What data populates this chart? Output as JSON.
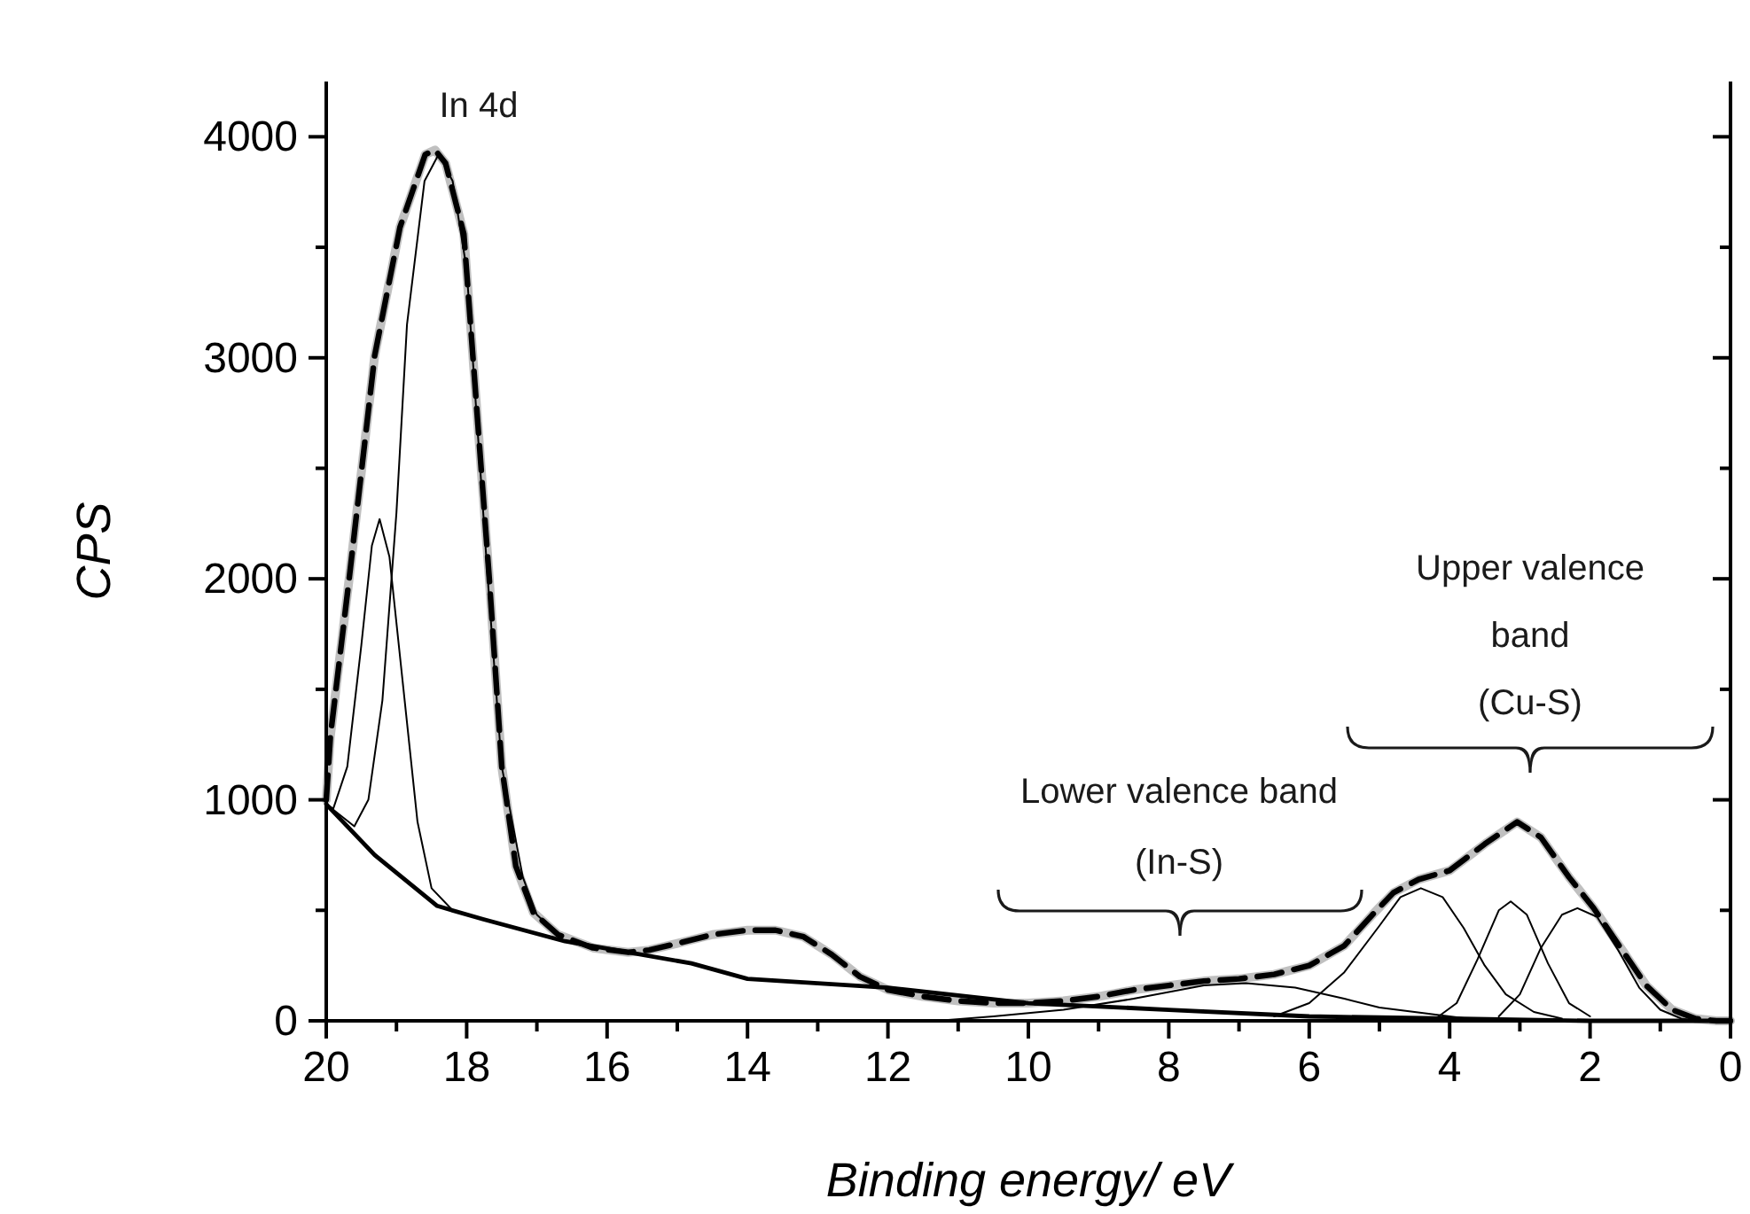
{
  "chart_data": {
    "type": "line",
    "xlabel": "Binding energy/ eV",
    "ylabel": "CPS",
    "xlim": [
      20,
      0
    ],
    "ylim": [
      0,
      4250
    ],
    "xticks": [
      20,
      {
        "value": 19,
        "label": null
      },
      18,
      {
        "value": 17,
        "label": null
      },
      16,
      {
        "value": 15,
        "label": null
      },
      14,
      {
        "value": 13,
        "label": null
      },
      12,
      {
        "value": 11,
        "label": null
      },
      10,
      {
        "value": 9,
        "label": null
      },
      8,
      {
        "value": 7,
        "label": null
      },
      6,
      {
        "value": 5,
        "label": null
      },
      4,
      {
        "value": 3,
        "label": null
      },
      2,
      {
        "value": 1,
        "label": null
      },
      0
    ],
    "yticks": [
      0,
      {
        "value": 500,
        "label": null
      },
      1000,
      {
        "value": 1500,
        "label": null
      },
      2000,
      {
        "value": 2500,
        "label": null
      },
      3000,
      {
        "value": 3500,
        "label": null
      },
      4000
    ],
    "grid": false,
    "marker": "none",
    "series": [
      {
        "color": "#c0c0c0",
        "line_style": "solid",
        "x": [
          20,
          19.94,
          19.67,
          19.31,
          18.95,
          18.59,
          18.45,
          18.3,
          18.04,
          17.68,
          17.5,
          17.3,
          17.05,
          16.7,
          16.2,
          15.7,
          15.4,
          15,
          14.5,
          14,
          13.6,
          13.2,
          12.8,
          12.4,
          12,
          11.5,
          11,
          10.5,
          10,
          9.5,
          9,
          8.5,
          8,
          7.5,
          7,
          6.5,
          6,
          5.5,
          5.1,
          4.8,
          4.44,
          4,
          3.5,
          3.04,
          2.7,
          2.3,
          1.95,
          1.5,
          1.2,
          0.83,
          0.5,
          0.2,
          0
        ],
        "values": [
          1000,
          1290,
          2010,
          3010,
          3590,
          3920,
          3940,
          3880,
          3560,
          2010,
          1150,
          700,
          490,
          390,
          330,
          310,
          320,
          350,
          390,
          410,
          410,
          380,
          300,
          200,
          140,
          110,
          90,
          80,
          80,
          90,
          110,
          140,
          160,
          180,
          190,
          210,
          250,
          340,
          480,
          580,
          640,
          680,
          800,
          900,
          830,
          650,
          510,
          300,
          160,
          50,
          10,
          0,
          0
        ]
      },
      {
        "color": "#000000",
        "line_style": "dashed",
        "x": [
          20,
          19.94,
          19.67,
          19.31,
          18.95,
          18.59,
          18.45,
          18.3,
          18.04,
          17.68,
          17.5,
          17.3,
          17.05,
          16.7,
          16.2,
          15.7,
          15.4,
          15,
          14.5,
          14,
          13.6,
          13.2,
          12.8,
          12.4,
          12,
          11.5,
          11,
          10.5,
          10,
          9.5,
          9,
          8.5,
          8,
          7.5,
          7,
          6.5,
          6,
          5.5,
          5.1,
          4.8,
          4.44,
          4,
          3.5,
          3.04,
          2.7,
          2.3,
          1.95,
          1.5,
          1.2,
          0.83,
          0.5,
          0.2,
          0
        ],
        "values": [
          1000,
          1290,
          2010,
          3010,
          3590,
          3920,
          3940,
          3880,
          3560,
          2010,
          1150,
          700,
          490,
          390,
          330,
          310,
          320,
          350,
          390,
          410,
          410,
          380,
          300,
          200,
          140,
          110,
          90,
          80,
          80,
          90,
          110,
          140,
          160,
          180,
          190,
          210,
          250,
          340,
          480,
          580,
          640,
          680,
          800,
          900,
          830,
          650,
          510,
          300,
          160,
          50,
          10,
          0,
          0
        ]
      },
      {
        "color": "#000000",
        "line_style": "solid",
        "x": [
          20,
          19.31,
          18.42,
          17.77,
          16.6,
          14.8,
          14,
          12,
          10,
          8,
          6,
          4,
          2,
          0
        ],
        "values": [
          980,
          750,
          520,
          460,
          360,
          260,
          190,
          150,
          80,
          50,
          20,
          10,
          0,
          0
        ]
      },
      {
        "color": "#000000",
        "line_style": "solid",
        "x": [
          20,
          19.6,
          19.4,
          19.2,
          19.0,
          18.85,
          18.6,
          18.4,
          18.2,
          18.0,
          17.7,
          17.5,
          17.2,
          17.0,
          16.7
        ],
        "values": [
          980,
          880,
          1000,
          1450,
          2300,
          3150,
          3800,
          3920,
          3800,
          3400,
          2000,
          1150,
          650,
          480,
          390
        ]
      },
      {
        "color": "#000000",
        "line_style": "solid",
        "x": [
          20,
          19.9,
          19.7,
          19.5,
          19.35,
          19.24,
          19.1,
          18.9,
          18.7,
          18.5,
          18.2
        ],
        "values": [
          980,
          960,
          1150,
          1700,
          2150,
          2270,
          2100,
          1500,
          900,
          600,
          500
        ]
      },
      {
        "color": "#000000",
        "line_style": "solid",
        "x": [
          11.3,
          10.5,
          9.5,
          8.5,
          7.5,
          6.9,
          6.2,
          5.5,
          5,
          4.5,
          4,
          3.5
        ],
        "values": [
          0,
          20,
          50,
          100,
          160,
          170,
          150,
          100,
          60,
          40,
          20,
          0
        ]
      },
      {
        "color": "#000000",
        "line_style": "solid",
        "x": [
          6.5,
          6,
          5.5,
          5,
          4.7,
          4.41,
          4.1,
          3.8,
          3.5,
          3.2,
          2.8,
          2.4
        ],
        "values": [
          20,
          80,
          220,
          430,
          560,
          600,
          560,
          420,
          250,
          120,
          40,
          10
        ]
      },
      {
        "color": "#000000",
        "line_style": "solid",
        "x": [
          4.2,
          3.9,
          3.6,
          3.3,
          3.13,
          2.9,
          2.6,
          2.3,
          2.0
        ],
        "values": [
          10,
          80,
          280,
          500,
          540,
          480,
          260,
          80,
          20
        ]
      },
      {
        "color": "#000000",
        "line_style": "solid",
        "x": [
          3.3,
          3.0,
          2.7,
          2.4,
          2.18,
          1.9,
          1.6,
          1.3,
          1.0,
          0.7,
          0.5
        ],
        "values": [
          20,
          120,
          330,
          480,
          510,
          470,
          320,
          150,
          50,
          10,
          0
        ]
      }
    ],
    "annotations": [
      "In 4d",
      "Lower valence band\n(In-S)",
      "Upper valence\nband\n(Cu-S)"
    ]
  }
}
